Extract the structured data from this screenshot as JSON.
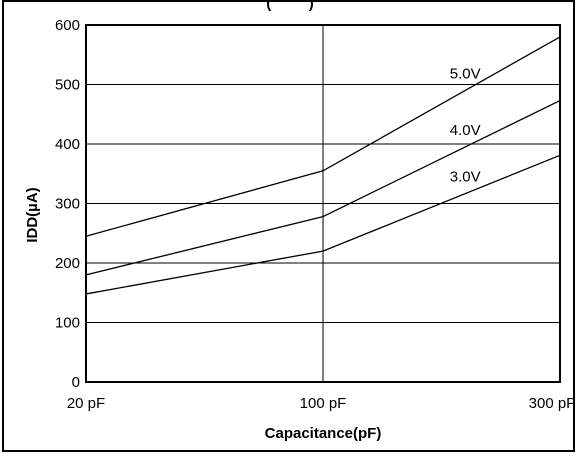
{
  "chart_data": {
    "type": "line",
    "title": "(         )",
    "xlabel": "Capacitance(pF)",
    "ylabel": "IDD(µA)",
    "categories": [
      "20 pF",
      "100 pF",
      "300 pF"
    ],
    "ylim": [
      0,
      600
    ],
    "yticks": [
      0,
      100,
      200,
      300,
      400,
      500,
      600
    ],
    "grid": true,
    "series": [
      {
        "name": "5.0V",
        "values": [
          245,
          355,
          580
        ]
      },
      {
        "name": "4.0V",
        "values": [
          180,
          278,
          473
        ]
      },
      {
        "name": "3.0V",
        "values": [
          148,
          220,
          381
        ]
      }
    ]
  }
}
